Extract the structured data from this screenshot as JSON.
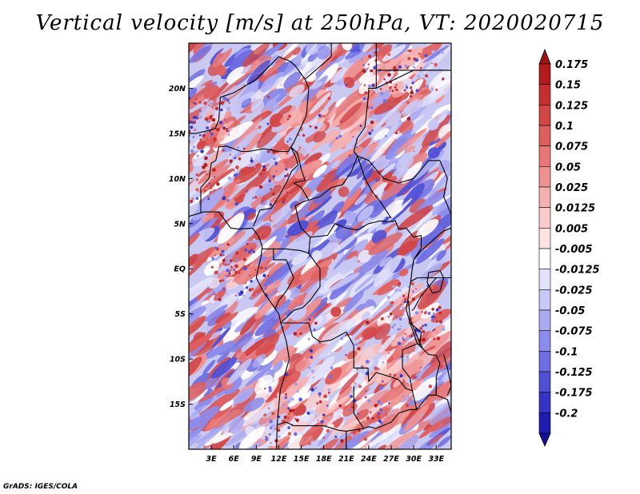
{
  "title": "Vertical velocity [m/s] at 250hPa, VT: 2020020715",
  "credit": "GrADS: IGES/COLA",
  "map": {
    "lon_range": [
      0,
      35
    ],
    "lat_range": [
      -20,
      25
    ],
    "lon_ticks": [
      {
        "value": 3,
        "label": "3E"
      },
      {
        "value": 6,
        "label": "6E"
      },
      {
        "value": 9,
        "label": "9E"
      },
      {
        "value": 12,
        "label": "12E"
      },
      {
        "value": 15,
        "label": "15E"
      },
      {
        "value": 18,
        "label": "18E"
      },
      {
        "value": 21,
        "label": "21E"
      },
      {
        "value": 24,
        "label": "24E"
      },
      {
        "value": 27,
        "label": "27E"
      },
      {
        "value": 30,
        "label": "30E"
      },
      {
        "value": 33,
        "label": "33E"
      }
    ],
    "lat_ticks": [
      {
        "value": 20,
        "label": "20N"
      },
      {
        "value": 15,
        "label": "15N"
      },
      {
        "value": 10,
        "label": "10N"
      },
      {
        "value": 5,
        "label": "5N"
      },
      {
        "value": 0,
        "label": "EQ"
      },
      {
        "value": -5,
        "label": "5S"
      },
      {
        "value": -10,
        "label": "10S"
      },
      {
        "value": -15,
        "label": "15S"
      }
    ]
  },
  "colorbar": {
    "levels": [
      {
        "label": "0.175",
        "color": "#b41c1c"
      },
      {
        "label": "0.15",
        "color": "#c43030"
      },
      {
        "label": "0.125",
        "color": "#d24646"
      },
      {
        "label": "0.1",
        "color": "#de5e5e"
      },
      {
        "label": "0.075",
        "color": "#e87878"
      },
      {
        "label": "0.05",
        "color": "#f09292"
      },
      {
        "label": "0.025",
        "color": "#f6b0b0"
      },
      {
        "label": "0.0125",
        "color": "#facaca"
      },
      {
        "label": "0.005",
        "color": "#fde2e2"
      },
      {
        "label": "-0.005",
        "color": "#ffffff"
      },
      {
        "label": "-0.0125",
        "color": "#e2e2fa"
      },
      {
        "label": "-0.025",
        "color": "#c8c8f6"
      },
      {
        "label": "-0.05",
        "color": "#aaaaf2"
      },
      {
        "label": "-0.075",
        "color": "#8c8cec"
      },
      {
        "label": "-0.1",
        "color": "#6e6ee2"
      },
      {
        "label": "-0.125",
        "color": "#5050d6"
      },
      {
        "label": "-0.175",
        "color": "#3434c6"
      },
      {
        "label": "-0.2",
        "color": "#1c1cb0"
      }
    ],
    "top_color": "#9e1414",
    "bottom_color": "#10109a"
  }
}
